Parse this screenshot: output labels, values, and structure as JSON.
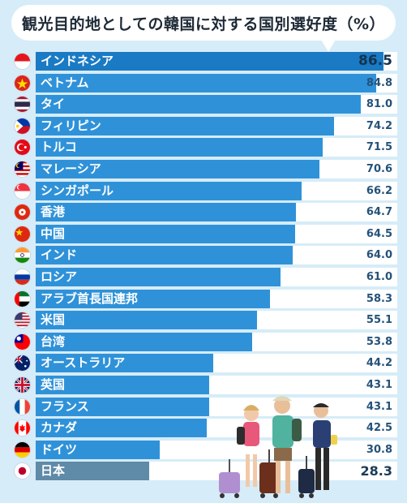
{
  "title": "観光目的地としての韓国に対する国別選好度（%）",
  "chart_data": {
    "type": "bar",
    "orientation": "horizontal",
    "title": "観光目的地としての韓国に対する国別選好度（%）",
    "xlim": [
      0,
      90
    ],
    "categories": [
      "インドネシア",
      "ベトナム",
      "タイ",
      "フィリピン",
      "トルコ",
      "マレーシア",
      "シンガポール",
      "香港",
      "中国",
      "インド",
      "ロシア",
      "アラブ首長国連邦",
      "米国",
      "台湾",
      "オーストラリア",
      "英国",
      "フランス",
      "カナダ",
      "ドイツ",
      "日本"
    ],
    "values": [
      86.5,
      84.8,
      81.0,
      74.2,
      71.5,
      70.6,
      66.2,
      64.7,
      64.5,
      64.0,
      61.0,
      58.3,
      55.1,
      53.8,
      44.2,
      43.1,
      43.1,
      42.5,
      30.8,
      28.3
    ],
    "value_labels": [
      "86.5",
      "84.8",
      "81.0",
      "74.2",
      "71.5",
      "70.6",
      "66.2",
      "64.7",
      "64.5",
      "64.0",
      "61.0",
      "58.3",
      "55.1",
      "53.8",
      "44.2",
      "43.1",
      "43.1",
      "42.5",
      "30.8",
      "28.3"
    ],
    "flags": [
      "indonesia-flag-icon",
      "vietnam-flag-icon",
      "thailand-flag-icon",
      "philippines-flag-icon",
      "turkey-flag-icon",
      "malaysia-flag-icon",
      "singapore-flag-icon",
      "hongkong-flag-icon",
      "china-flag-icon",
      "india-flag-icon",
      "russia-flag-icon",
      "uae-flag-icon",
      "usa-flag-icon",
      "taiwan-flag-icon",
      "australia-flag-icon",
      "uk-flag-icon",
      "france-flag-icon",
      "canada-flag-icon",
      "germany-flag-icon",
      "japan-flag-icon"
    ],
    "colors": {
      "bar": "#2f92d9",
      "top_bar": "#1a7ac4",
      "japan_bar": "#5f8aa8",
      "track": "#ffffff",
      "background": "#d6ecf8"
    }
  },
  "illustration": {
    "name": "travelers-illustration-icon"
  }
}
